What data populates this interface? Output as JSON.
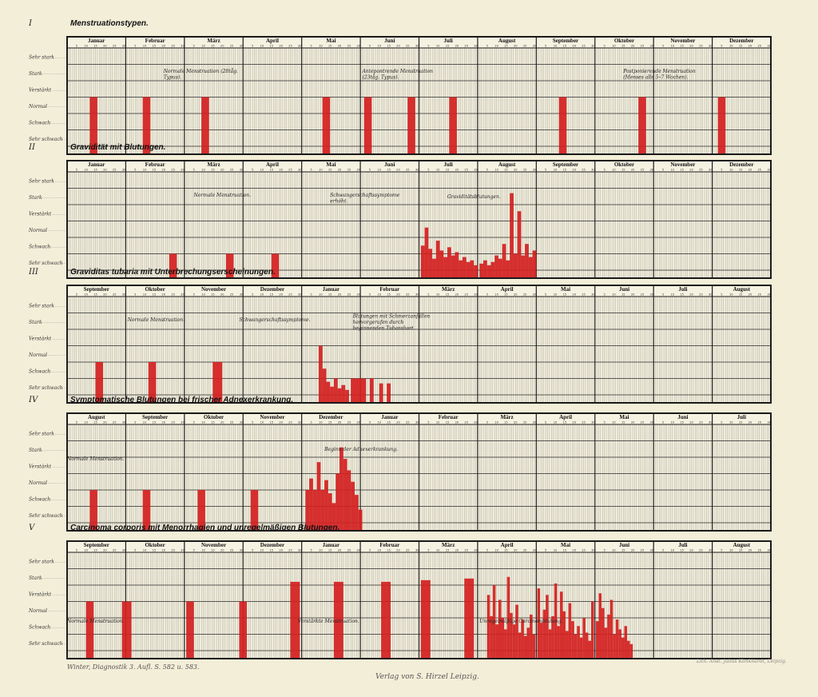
{
  "levels": [
    "Sehr stark",
    "Stark",
    "Verstärkt",
    "Normal",
    "Schwach",
    "Sehr schwach"
  ],
  "day_ticks": [
    "5",
    "10",
    "15",
    "20",
    "25",
    "30"
  ],
  "colors": {
    "paper": "#f3eed8",
    "grid": "#1a1a1a",
    "bar": "#d42020"
  },
  "footer": {
    "left": "Winter, Diagnostik 3. Aufl. S. 582 u. 583.",
    "center": "Verlag von S. Hirzel Leipzig.",
    "right": "Lith. Anst. Julius Klinkhardt, Leipzig."
  },
  "chart_data": [
    {
      "type": "bar",
      "numeral": "I",
      "title": "Menstruationstypen.",
      "months": [
        "Januar",
        "Februar",
        "März",
        "April",
        "Mai",
        "Juni",
        "Juli",
        "August",
        "September",
        "Oktober",
        "November",
        "Dezember"
      ],
      "annotations": [
        {
          "text": "Normale Menstruation (28tåg. Typus).",
          "month": 1,
          "day": 20,
          "level": 1.5
        },
        {
          "text": "Antepontrende Menstruation (23tåg. Typus).",
          "month": 5,
          "day": 1,
          "level": 1.5
        },
        {
          "text": "Postponierende Menstruation (Menses alle 5–7 Wochen).",
          "month": 9,
          "day": 15,
          "level": 1.5
        }
      ],
      "bars": [
        {
          "month": 0,
          "day": 12,
          "days": 4,
          "level": 3
        },
        {
          "month": 1,
          "day": 9,
          "days": 4,
          "level": 3
        },
        {
          "month": 2,
          "day": 9,
          "days": 4,
          "level": 3
        },
        {
          "month": 4,
          "day": 11,
          "days": 4,
          "level": 3
        },
        {
          "month": 5,
          "day": 2,
          "days": 4,
          "level": 3
        },
        {
          "month": 5,
          "day": 25,
          "days": 4,
          "level": 3
        },
        {
          "month": 6,
          "day": 16,
          "days": 4,
          "level": 3
        },
        {
          "month": 8,
          "day": 12,
          "days": 4,
          "level": 3
        },
        {
          "month": 9,
          "day": 23,
          "days": 4,
          "level": 3
        },
        {
          "month": 11,
          "day": 3,
          "days": 4,
          "level": 3
        }
      ]
    },
    {
      "type": "bar",
      "numeral": "II",
      "title": "Gravidität mit Blutungen.",
      "months": [
        "Januar",
        "Februar",
        "März",
        "April",
        "Mai",
        "Juni",
        "Juli",
        "August",
        "September",
        "Oktober",
        "November",
        "Dezember"
      ],
      "annotations": [
        {
          "text": "Normale Menstruation.",
          "month": 2,
          "day": 5,
          "level": 1.5
        },
        {
          "text": "Schwangerschaftssymptome erhöht.",
          "month": 4,
          "day": 15,
          "level": 1.5
        },
        {
          "text": "Graviditätsblutungen.",
          "month": 6,
          "day": 15,
          "level": 1.6
        }
      ],
      "bars": [
        {
          "month": 1,
          "day": 23,
          "days": 4,
          "level": 1
        },
        {
          "month": 2,
          "day": 22,
          "days": 4,
          "level": 1
        },
        {
          "month": 3,
          "day": 15,
          "days": 4,
          "level": 1
        },
        {
          "month": 6,
          "day": 1,
          "days": 2,
          "level": 1.5
        },
        {
          "month": 6,
          "day": 3,
          "days": 2,
          "level": 2.6
        },
        {
          "month": 6,
          "day": 5,
          "days": 2,
          "level": 1.3
        },
        {
          "month": 6,
          "day": 7,
          "days": 2,
          "level": 0.7
        },
        {
          "month": 6,
          "day": 9,
          "days": 2,
          "level": 1.8
        },
        {
          "month": 6,
          "day": 11,
          "days": 2,
          "level": 1.2
        },
        {
          "month": 6,
          "day": 13,
          "days": 2,
          "level": 0.8
        },
        {
          "month": 6,
          "day": 15,
          "days": 2,
          "level": 1.4
        },
        {
          "month": 6,
          "day": 17,
          "days": 2,
          "level": 0.9
        },
        {
          "month": 6,
          "day": 19,
          "days": 2,
          "level": 1.1
        },
        {
          "month": 6,
          "day": 21,
          "days": 2,
          "level": 0.6
        },
        {
          "month": 6,
          "day": 23,
          "days": 2,
          "level": 0.8
        },
        {
          "month": 6,
          "day": 25,
          "days": 2,
          "level": 0.5
        },
        {
          "month": 6,
          "day": 27,
          "days": 2,
          "level": 0.6
        },
        {
          "month": 6,
          "day": 29,
          "days": 2,
          "level": 0.3
        },
        {
          "month": 7,
          "day": 1,
          "days": 2,
          "level": 0.4
        },
        {
          "month": 7,
          "day": 3,
          "days": 2,
          "level": 0.6
        },
        {
          "month": 7,
          "day": 5,
          "days": 2,
          "level": 0.3
        },
        {
          "month": 7,
          "day": 7,
          "days": 2,
          "level": 0.5
        },
        {
          "month": 7,
          "day": 9,
          "days": 2,
          "level": 0.9
        },
        {
          "month": 7,
          "day": 11,
          "days": 2,
          "level": 0.7
        },
        {
          "month": 7,
          "day": 13,
          "days": 2,
          "level": 1.6
        },
        {
          "month": 7,
          "day": 15,
          "days": 2,
          "level": 0.6
        },
        {
          "month": 7,
          "day": 17,
          "days": 2,
          "level": 4.7
        },
        {
          "month": 7,
          "day": 19,
          "days": 2,
          "level": 1.0
        },
        {
          "month": 7,
          "day": 21,
          "days": 2,
          "level": 3.6
        },
        {
          "month": 7,
          "day": 23,
          "days": 2,
          "level": 0.9
        },
        {
          "month": 7,
          "day": 25,
          "days": 2,
          "level": 1.6
        },
        {
          "month": 7,
          "day": 27,
          "days": 2,
          "level": 0.8
        },
        {
          "month": 7,
          "day": 29,
          "days": 2,
          "level": 1.2
        }
      ]
    },
    {
      "type": "bar",
      "numeral": "III",
      "title": "Graviditas tubaria mit Unterbrechungserscheinungen.",
      "months": [
        "September",
        "Oktober",
        "November",
        "Dezember",
        "Januar",
        "Februar",
        "März",
        "April",
        "Mai",
        "Juni",
        "Juli",
        "August"
      ],
      "annotations": [
        {
          "text": "Normale Menstruation.",
          "month": 1,
          "day": 1,
          "level": 1.5
        },
        {
          "text": "Schwangerschaftssymptome.",
          "month": 2,
          "day": 29,
          "level": 1.5
        },
        {
          "text": "Blutungen mit Schmerzanfällen hervorgerufen durch beginnenden Tubarabort.",
          "month": 4,
          "day": 27,
          "level": 1.3
        }
      ],
      "bars": [
        {
          "month": 0,
          "day": 15,
          "days": 4,
          "level": 2
        },
        {
          "month": 1,
          "day": 12,
          "days": 4,
          "level": 2
        },
        {
          "month": 2,
          "day": 15,
          "days": 5,
          "level": 2
        },
        {
          "month": 4,
          "day": 9,
          "days": 2,
          "level": 3
        },
        {
          "month": 4,
          "day": 11,
          "days": 2,
          "level": 1.6
        },
        {
          "month": 4,
          "day": 13,
          "days": 2,
          "level": 0.8
        },
        {
          "month": 4,
          "day": 15,
          "days": 2,
          "level": 0.5
        },
        {
          "month": 4,
          "day": 17,
          "days": 2,
          "level": 1.0
        },
        {
          "month": 4,
          "day": 19,
          "days": 2,
          "level": 0.4
        },
        {
          "month": 4,
          "day": 21,
          "days": 2,
          "level": 0.6
        },
        {
          "month": 4,
          "day": 23,
          "days": 2,
          "level": 0.3
        },
        {
          "month": 4,
          "day": 26,
          "days": 8,
          "level": 1
        },
        {
          "month": 5,
          "day": 5,
          "days": 2,
          "level": 1
        },
        {
          "month": 5,
          "day": 10,
          "days": 2,
          "level": 0.7
        },
        {
          "month": 5,
          "day": 14,
          "days": 2,
          "level": 0.7
        }
      ]
    },
    {
      "type": "bar",
      "numeral": "IV",
      "title": "Symptomatische Blutungen bei frischer Adnexerkrankung.",
      "months": [
        "August",
        "September",
        "Oktober",
        "November",
        "Dezember",
        "Januar",
        "Februar",
        "März",
        "April",
        "Mai",
        "Juni",
        "Juli"
      ],
      "annotations": [
        {
          "text": "Normale Menstruation.",
          "month": 0,
          "day": 0,
          "level": 2.2
        },
        {
          "text": "Beginn der Adnexerkrankung.",
          "month": 4,
          "day": 12,
          "level": 1.6
        }
      ],
      "bars": [
        {
          "month": 0,
          "day": 12,
          "days": 4,
          "level": 2
        },
        {
          "month": 1,
          "day": 9,
          "days": 4,
          "level": 2
        },
        {
          "month": 2,
          "day": 7,
          "days": 4,
          "level": 2
        },
        {
          "month": 3,
          "day": 4,
          "days": 4,
          "level": 2
        },
        {
          "month": 4,
          "day": 2,
          "days": 2,
          "level": 2
        },
        {
          "month": 4,
          "day": 4,
          "days": 2,
          "level": 2.7
        },
        {
          "month": 4,
          "day": 6,
          "days": 2,
          "level": 2
        },
        {
          "month": 4,
          "day": 8,
          "days": 2,
          "level": 3.7
        },
        {
          "month": 4,
          "day": 10,
          "days": 2,
          "level": 2
        },
        {
          "month": 4,
          "day": 12,
          "days": 2,
          "level": 2.6
        },
        {
          "month": 4,
          "day": 14,
          "days": 2,
          "level": 1.8
        },
        {
          "month": 4,
          "day": 16,
          "days": 2,
          "level": 1.2
        },
        {
          "month": 4,
          "day": 18,
          "days": 2,
          "level": 3.0
        },
        {
          "month": 4,
          "day": 20,
          "days": 2,
          "level": 4.6
        },
        {
          "month": 4,
          "day": 22,
          "days": 2,
          "level": 3.9
        },
        {
          "month": 4,
          "day": 24,
          "days": 2,
          "level": 3.2
        },
        {
          "month": 4,
          "day": 26,
          "days": 2,
          "level": 2.5
        },
        {
          "month": 4,
          "day": 28,
          "days": 2,
          "level": 1.7
        },
        {
          "month": 4,
          "day": 30,
          "days": 2,
          "level": 0.8
        }
      ]
    },
    {
      "type": "bar",
      "numeral": "V",
      "title": "Carcinoma corporis mit Menorrhagien und unregelmäßigen Blutungen.",
      "months": [
        "September",
        "Oktober",
        "November",
        "Dezember",
        "Januar",
        "Februar",
        "März",
        "April",
        "Mai",
        "Juni",
        "Juli",
        "August"
      ],
      "annotations": [
        {
          "text": "Normale Menstruation.",
          "month": 0,
          "day": 0,
          "level": 4.3
        },
        {
          "text": "Verstärkte Menstruation.",
          "month": 3,
          "day": 29,
          "level": 4.3
        },
        {
          "text": "Unregelmäßige Carcinomblutung.",
          "month": 7,
          "day": 1,
          "level": 4.3
        }
      ],
      "bars": [
        {
          "month": 0,
          "day": 10,
          "days": 4,
          "level": 3
        },
        {
          "month": 0,
          "day": 29,
          "days": 5,
          "level": 3
        },
        {
          "month": 2,
          "day": 1,
          "days": 4,
          "level": 3
        },
        {
          "month": 2,
          "day": 29,
          "days": 4,
          "level": 3
        },
        {
          "month": 3,
          "day": 25,
          "days": 5,
          "level": 4.2
        },
        {
          "month": 4,
          "day": 17,
          "days": 5,
          "level": 4.2
        },
        {
          "month": 5,
          "day": 11,
          "days": 5,
          "level": 4.2
        },
        {
          "month": 6,
          "day": 1,
          "days": 5,
          "level": 4.3
        },
        {
          "month": 6,
          "day": 24,
          "days": 5,
          "level": 4.4
        },
        {
          "month": 7,
          "day": 5,
          "days": 1.5,
          "level": 3.4
        },
        {
          "month": 7,
          "day": 6.5,
          "days": 1.5,
          "level": 2.1
        },
        {
          "month": 7,
          "day": 8,
          "days": 1.5,
          "level": 4.0
        },
        {
          "month": 7,
          "day": 9.5,
          "days": 1.5,
          "level": 1.6
        },
        {
          "month": 7,
          "day": 11,
          "days": 1.5,
          "level": 3.1
        },
        {
          "month": 7,
          "day": 12.5,
          "days": 1.5,
          "level": 2.0
        },
        {
          "month": 7,
          "day": 14,
          "days": 1.5,
          "level": 1.3
        },
        {
          "month": 7,
          "day": 15.5,
          "days": 1.5,
          "level": 4.5
        },
        {
          "month": 7,
          "day": 17,
          "days": 1.5,
          "level": 2.3
        },
        {
          "month": 7,
          "day": 18.5,
          "days": 1.5,
          "level": 1.6
        },
        {
          "month": 7,
          "day": 20,
          "days": 1.5,
          "level": 2.8
        },
        {
          "month": 7,
          "day": 21.5,
          "days": 1.5,
          "level": 1.1
        },
        {
          "month": 7,
          "day": 23,
          "days": 1.5,
          "level": 1.9
        },
        {
          "month": 7,
          "day": 24.5,
          "days": 1.5,
          "level": 0.9
        },
        {
          "month": 7,
          "day": 26,
          "days": 1.5,
          "level": 1.4
        },
        {
          "month": 7,
          "day": 27.5,
          "days": 1.5,
          "level": 2.2
        },
        {
          "month": 7,
          "day": 29,
          "days": 1.5,
          "level": 1.0
        },
        {
          "month": 8,
          "day": 0.5,
          "days": 1.5,
          "level": 3.8
        },
        {
          "month": 8,
          "day": 2,
          "days": 1.5,
          "level": 1.7
        },
        {
          "month": 8,
          "day": 3.5,
          "days": 1.5,
          "level": 2.5
        },
        {
          "month": 8,
          "day": 5,
          "days": 1.5,
          "level": 3.4
        },
        {
          "month": 8,
          "day": 6.5,
          "days": 1.5,
          "level": 1.3
        },
        {
          "month": 8,
          "day": 8,
          "days": 1.5,
          "level": 2.1
        },
        {
          "month": 8,
          "day": 9.5,
          "days": 1.5,
          "level": 4.1
        },
        {
          "month": 8,
          "day": 11,
          "days": 1.5,
          "level": 1.5
        },
        {
          "month": 8,
          "day": 12.5,
          "days": 1.5,
          "level": 3.6
        },
        {
          "month": 8,
          "day": 14,
          "days": 1.5,
          "level": 2.4
        },
        {
          "month": 8,
          "day": 15.5,
          "days": 1.5,
          "level": 1.2
        },
        {
          "month": 8,
          "day": 17,
          "days": 1.5,
          "level": 2.9
        },
        {
          "month": 8,
          "day": 18.5,
          "days": 1.5,
          "level": 1.8
        },
        {
          "month": 8,
          "day": 20,
          "days": 1.5,
          "level": 1.0
        },
        {
          "month": 8,
          "day": 21.5,
          "days": 1.5,
          "level": 1.5
        },
        {
          "month": 8,
          "day": 23,
          "days": 1.5,
          "level": 0.8
        },
        {
          "month": 8,
          "day": 24.5,
          "days": 1.5,
          "level": 2.0
        },
        {
          "month": 8,
          "day": 26,
          "days": 1.5,
          "level": 1.1
        },
        {
          "month": 8,
          "day": 27.5,
          "days": 1.5,
          "level": 0.6
        },
        {
          "month": 8,
          "day": 29,
          "days": 1.5,
          "level": 3.0
        },
        {
          "month": 9,
          "day": 0.5,
          "days": 1.5,
          "level": 1.8
        },
        {
          "month": 9,
          "day": 2,
          "days": 1.5,
          "level": 3.5
        },
        {
          "month": 9,
          "day": 3.5,
          "days": 1.5,
          "level": 2.6
        },
        {
          "month": 9,
          "day": 5,
          "days": 1.5,
          "level": 1.4
        },
        {
          "month": 9,
          "day": 6.5,
          "days": 1.5,
          "level": 2.2
        },
        {
          "month": 9,
          "day": 8,
          "days": 1.5,
          "level": 3.1
        },
        {
          "month": 9,
          "day": 9.5,
          "days": 1.5,
          "level": 1.0
        },
        {
          "month": 9,
          "day": 11,
          "days": 1.5,
          "level": 1.9
        },
        {
          "month": 9,
          "day": 12.5,
          "days": 1.5,
          "level": 1.3
        },
        {
          "month": 9,
          "day": 14,
          "days": 1.5,
          "level": 0.8
        },
        {
          "month": 9,
          "day": 15.5,
          "days": 1.5,
          "level": 1.5
        },
        {
          "month": 9,
          "day": 17,
          "days": 1.5,
          "level": 0.6
        },
        {
          "month": 9,
          "day": 18.5,
          "days": 1.5,
          "level": 0.4
        }
      ]
    }
  ]
}
